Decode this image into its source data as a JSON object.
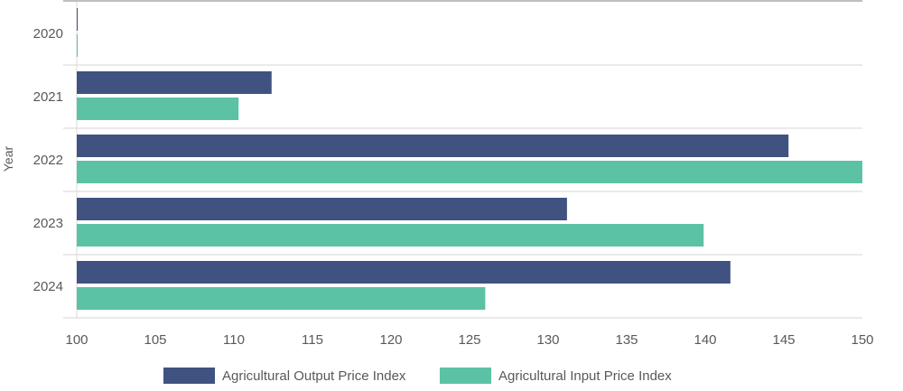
{
  "chart_data": {
    "type": "bar",
    "orientation": "horizontal",
    "title": "",
    "xlabel": "",
    "ylabel": "Year",
    "categories": [
      "2020",
      "2021",
      "2022",
      "2023",
      "2024"
    ],
    "series": [
      {
        "name": "Agricultural Output Price Index",
        "color": "#3f5280",
        "values": [
          100,
          112.4,
          145.3,
          131.2,
          141.6
        ]
      },
      {
        "name": "Agricultural Input Price Index",
        "color": "#5bc2a6",
        "values": [
          100,
          110.3,
          150,
          139.9,
          126.0
        ]
      }
    ],
    "xlim": [
      100,
      150
    ],
    "xticks": [
      "100",
      "105",
      "110",
      "115",
      "120",
      "125",
      "130",
      "135",
      "140",
      "145",
      "150"
    ],
    "grid": true,
    "legend": "bottom"
  }
}
